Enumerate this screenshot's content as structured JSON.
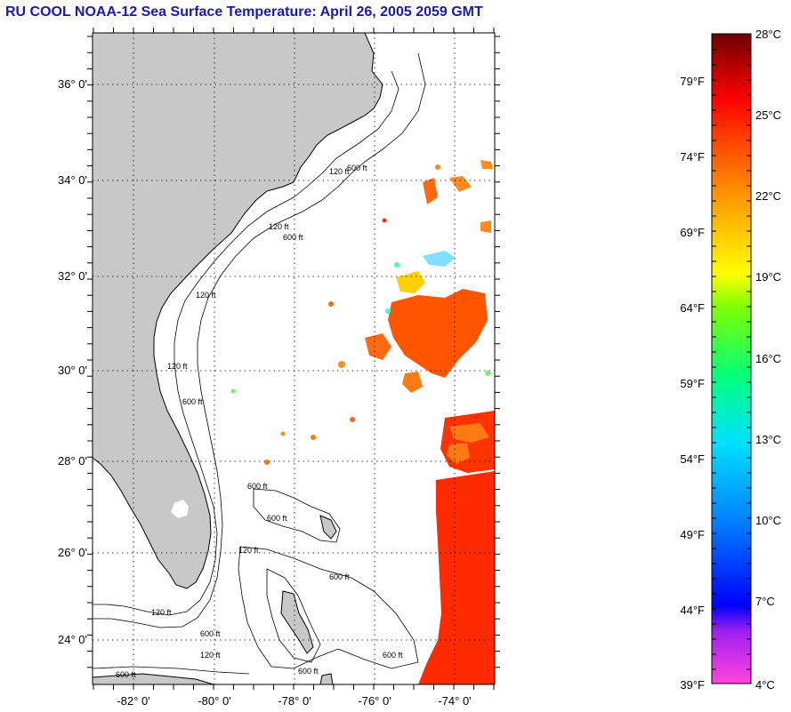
{
  "title": "RU COOL  NOAA-12  Sea Surface Temperature:  April 26, 2005 2059 GMT",
  "map": {
    "lat_labels": [
      "36° 0'",
      "34° 0'",
      "32° 0'",
      "30° 0'",
      "28° 0'",
      "26° 0'",
      "24° 0'"
    ],
    "lon_labels": [
      "-82° 0'",
      "-80° 0'",
      "-78° 0'",
      "-76° 0'",
      "-74° 0'"
    ],
    "isobath_labels": [
      "120 ft",
      "600 ft",
      "120 ft",
      "600 ft",
      "120 ft",
      "600 ft",
      "120 ft",
      "600 ft",
      "120 ft",
      "600 ft",
      "600 ft",
      "120 ft",
      "600 ft",
      "600 ft",
      "600 ft",
      "120 ft",
      "600 ft"
    ],
    "colors": {
      "land": "#c8c8c8",
      "ocean": "#ffffff"
    }
  },
  "colorbar": {
    "fahrenheit": [
      "79°F",
      "74°F",
      "69°F",
      "64°F",
      "59°F",
      "54°F",
      "49°F",
      "44°F",
      "39°F"
    ],
    "celsius": [
      "28°C",
      "25°C",
      "22°C",
      "19°C",
      "16°C",
      "13°C",
      "10°C",
      "7°C",
      "4°C"
    ],
    "gradient": [
      "#ff44dd",
      "#a020f0",
      "#0000ff",
      "#0080ff",
      "#00e0ff",
      "#00ff80",
      "#80ff00",
      "#ffff00",
      "#ffa000",
      "#ff4000",
      "#ff0000",
      "#700000"
    ]
  }
}
